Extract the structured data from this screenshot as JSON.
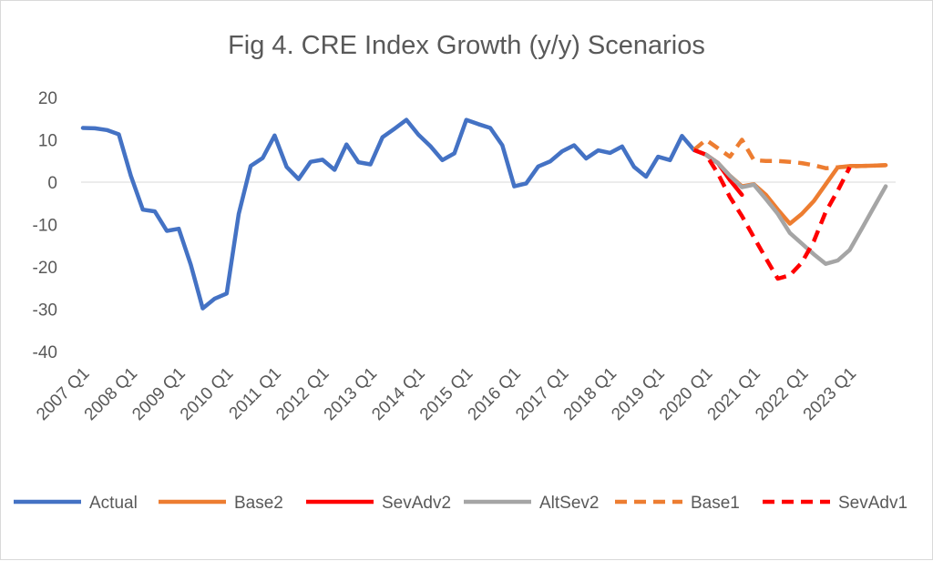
{
  "chart_data": {
    "type": "line",
    "title": "Fig 4. CRE Index Growth (y/y) Scenarios",
    "xlabel": "",
    "ylabel": "",
    "ylim": [
      -40,
      20
    ],
    "yticks": [
      20,
      10,
      0,
      -10,
      -20,
      -30,
      -40
    ],
    "grid": false,
    "legend_position": "bottom",
    "x_tick_labels": [
      "2007 Q1",
      "2008 Q1",
      "2009 Q1",
      "2010 Q1",
      "2011 Q1",
      "2012 Q1",
      "2013 Q1",
      "2014 Q1",
      "2015 Q1",
      "2016 Q1",
      "2017 Q1",
      "2018 Q1",
      "2019 Q1",
      "2020 Q1",
      "2021 Q1",
      "2022 Q1",
      "2023 Q1"
    ],
    "series": [
      {
        "name": "Actual",
        "color": "#4472c4",
        "dash": "solid",
        "points": [
          [
            "2007 Q1",
            12.8
          ],
          [
            "2007 Q2",
            12.7
          ],
          [
            "2007 Q3",
            12.3
          ],
          [
            "2007 Q4",
            11.3
          ],
          [
            "2008 Q1",
            1.5
          ],
          [
            "2008 Q2",
            -6.5
          ],
          [
            "2008 Q3",
            -6.9
          ],
          [
            "2008 Q4",
            -11.5
          ],
          [
            "2009 Q1",
            -11.0
          ],
          [
            "2009 Q2",
            -19.5
          ],
          [
            "2009 Q3",
            -29.8
          ],
          [
            "2009 Q4",
            -27.5
          ],
          [
            "2010 Q1",
            -26.3
          ],
          [
            "2010 Q2",
            -7.5
          ],
          [
            "2010 Q3",
            3.8
          ],
          [
            "2010 Q4",
            5.7
          ],
          [
            "2011 Q1",
            11.0
          ],
          [
            "2011 Q2",
            3.6
          ],
          [
            "2011 Q3",
            0.7
          ],
          [
            "2011 Q4",
            4.8
          ],
          [
            "2012 Q1",
            5.3
          ],
          [
            "2012 Q2",
            2.9
          ],
          [
            "2012 Q3",
            8.9
          ],
          [
            "2012 Q4",
            4.7
          ],
          [
            "2013 Q1",
            4.2
          ],
          [
            "2013 Q2",
            10.6
          ],
          [
            "2013 Q3",
            12.6
          ],
          [
            "2013 Q4",
            14.7
          ],
          [
            "2014 Q1",
            11.2
          ],
          [
            "2014 Q2",
            8.5
          ],
          [
            "2014 Q3",
            5.2
          ],
          [
            "2014 Q4",
            6.8
          ],
          [
            "2015 Q1",
            14.7
          ],
          [
            "2015 Q2",
            13.7
          ],
          [
            "2015 Q3",
            12.8
          ],
          [
            "2015 Q4",
            8.7
          ],
          [
            "2016 Q1",
            -1.0
          ],
          [
            "2016 Q2",
            -0.3
          ],
          [
            "2016 Q3",
            3.7
          ],
          [
            "2016 Q4",
            4.9
          ],
          [
            "2017 Q1",
            7.3
          ],
          [
            "2017 Q2",
            8.7
          ],
          [
            "2017 Q3",
            5.6
          ],
          [
            "2017 Q4",
            7.5
          ],
          [
            "2018 Q1",
            6.9
          ],
          [
            "2018 Q2",
            8.4
          ],
          [
            "2018 Q3",
            3.6
          ],
          [
            "2018 Q4",
            1.3
          ],
          [
            "2019 Q1",
            6.0
          ],
          [
            "2019 Q2",
            5.2
          ],
          [
            "2019 Q3",
            10.9
          ],
          [
            "2019 Q4",
            7.6
          ],
          [
            "2020 Q1",
            6.5
          ],
          [
            "2020 Q2",
            4.5
          ]
        ]
      },
      {
        "name": "Base2",
        "color": "#ed7d31",
        "dash": "solid",
        "points": [
          [
            "2020 Q1",
            6.5
          ],
          [
            "2020 Q2",
            4.5
          ],
          [
            "2020 Q3",
            1.5
          ],
          [
            "2020 Q4",
            -1.0
          ],
          [
            "2021 Q1",
            -0.5
          ],
          [
            "2021 Q2",
            -3.0
          ],
          [
            "2021 Q3",
            -6.5
          ],
          [
            "2021 Q4",
            -9.8
          ],
          [
            "2022 Q1",
            -7.5
          ],
          [
            "2022 Q2",
            -4.5
          ],
          [
            "2022 Q3",
            -0.5
          ],
          [
            "2022 Q4",
            3.5
          ],
          [
            "2023 Q1",
            3.8
          ],
          [
            "2023 Q2",
            3.8
          ],
          [
            "2023 Q3",
            3.9
          ],
          [
            "2023 Q4",
            4.0
          ]
        ]
      },
      {
        "name": "SevAdv2",
        "color": "#ff0000",
        "dash": "solid",
        "points": [
          [
            "2020 Q1",
            6.5
          ],
          [
            "2020 Q2",
            4.5
          ],
          [
            "2020 Q3",
            0.5
          ],
          [
            "2020 Q4",
            -3.0
          ]
        ]
      },
      {
        "name": "AltSev2",
        "color": "#a5a5a5",
        "dash": "solid",
        "points": [
          [
            "2020 Q1",
            6.5
          ],
          [
            "2020 Q2",
            4.5
          ],
          [
            "2020 Q3",
            1.5
          ],
          [
            "2020 Q4",
            -1.2
          ],
          [
            "2021 Q1",
            -0.6
          ],
          [
            "2021 Q2",
            -4.0
          ],
          [
            "2021 Q3",
            -7.5
          ],
          [
            "2021 Q4",
            -12.0
          ],
          [
            "2022 Q1",
            -14.5
          ],
          [
            "2022 Q2",
            -17.0
          ],
          [
            "2022 Q3",
            -19.3
          ],
          [
            "2022 Q4",
            -18.5
          ],
          [
            "2023 Q1",
            -16.0
          ],
          [
            "2023 Q2",
            -11.0
          ],
          [
            "2023 Q3",
            -6.0
          ],
          [
            "2023 Q4",
            -1.0
          ]
        ]
      },
      {
        "name": "Base1",
        "color": "#ed7d31",
        "dash": "dashed",
        "points": [
          [
            "2019 Q4",
            7.6
          ],
          [
            "2020 Q1",
            10.0
          ],
          [
            "2020 Q2",
            8.0
          ],
          [
            "2020 Q3",
            6.0
          ],
          [
            "2020 Q4",
            10.0
          ],
          [
            "2021 Q1",
            5.2
          ],
          [
            "2021 Q2",
            5.0
          ],
          [
            "2021 Q3",
            5.0
          ],
          [
            "2021 Q4",
            4.8
          ],
          [
            "2022 Q1",
            4.5
          ],
          [
            "2022 Q2",
            4.0
          ],
          [
            "2022 Q3",
            3.3
          ],
          [
            "2022 Q4",
            3.5
          ],
          [
            "2023 Q1",
            3.7
          ],
          [
            "2023 Q2",
            3.8
          ],
          [
            "2023 Q3",
            3.9
          ],
          [
            "2023 Q4",
            4.0
          ]
        ]
      },
      {
        "name": "SevAdv1",
        "color": "#ff0000",
        "dash": "dashed",
        "points": [
          [
            "2019 Q4",
            7.6
          ],
          [
            "2020 Q1",
            6.5
          ],
          [
            "2020 Q2",
            2.0
          ],
          [
            "2020 Q3",
            -3.5
          ],
          [
            "2020 Q4",
            -8.0
          ],
          [
            "2021 Q1",
            -13.0
          ],
          [
            "2021 Q2",
            -18.0
          ],
          [
            "2021 Q3",
            -22.8
          ],
          [
            "2021 Q4",
            -22.0
          ],
          [
            "2022 Q1",
            -19.0
          ],
          [
            "2022 Q2",
            -14.0
          ],
          [
            "2022 Q3",
            -7.0
          ],
          [
            "2022 Q4",
            -2.0
          ],
          [
            "2023 Q1",
            3.5
          ]
        ]
      }
    ]
  }
}
